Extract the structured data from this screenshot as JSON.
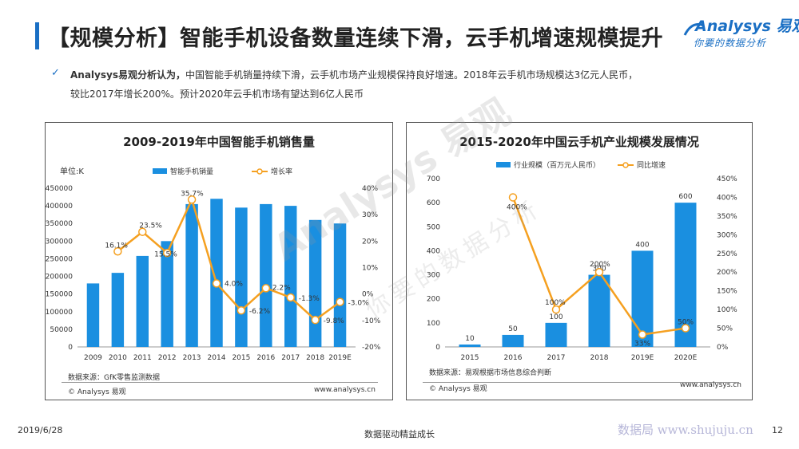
{
  "header": {
    "title": "【规模分析】智能手机设备数量连续下滑，云手机增速规模提升",
    "logo_main": "Analysys 易观",
    "logo_sub": "你要的数据分析"
  },
  "summary": {
    "lead": "Analysys易观分析认为，",
    "text1": "中国智能手机销量持续下滑，云手机市场产业规模保持良好增速。2018年云手机市场规模达3亿元人民币，",
    "text2": "较比2017年增长200%。预计2020年云手机市场有望达到6亿人民币"
  },
  "watermark": {
    "main": "Analysys 易观",
    "sub": "你要的数据分析"
  },
  "chart_data": [
    {
      "type": "bar",
      "title": "2009-2019年中国智能手机销售量",
      "unit_label": "单位:K",
      "categories": [
        "2009",
        "2010",
        "2011",
        "2012",
        "2013",
        "2014",
        "2015",
        "2016",
        "2017",
        "2018",
        "2019E"
      ],
      "series": [
        {
          "name": "智能手机销量",
          "type": "bar",
          "axis": "left",
          "color": "#1a8fe0",
          "values": [
            180000,
            210000,
            258000,
            300000,
            405000,
            420000,
            395000,
            405000,
            400000,
            360000,
            350000
          ]
        },
        {
          "name": "增长率",
          "type": "line",
          "axis": "right",
          "color": "#f5a020",
          "values": [
            null,
            16.1,
            23.5,
            15.5,
            35.7,
            4.0,
            -6.2,
            2.2,
            -1.3,
            -9.8,
            -3.0
          ],
          "labels": [
            "",
            "16.1%",
            "23.5%",
            "15.5%",
            "35.7%",
            "4.0%",
            "-6.2%",
            "2.2%",
            "-1.3%",
            "-9.8%",
            "-3.0%"
          ]
        }
      ],
      "ylim_left": [
        0,
        450000
      ],
      "yticks_left": [
        0,
        50000,
        100000,
        150000,
        200000,
        250000,
        300000,
        350000,
        400000,
        450000
      ],
      "ylim_right": [
        -20,
        40
      ],
      "yticks_right": [
        "-20%",
        "-10%",
        "0%",
        "10%",
        "20%",
        "30%",
        "40%"
      ],
      "legend_placement": "top",
      "source": "数据来源：GfK零售监测数据",
      "copyright": "© Analysys 易观",
      "site": "www.analysys.cn"
    },
    {
      "type": "bar",
      "title": "2015-2020年中国云手机产业规模发展情况",
      "categories": [
        "2015",
        "2016",
        "2017",
        "2018",
        "2019E",
        "2020E"
      ],
      "series": [
        {
          "name": "行业规模（百万元人民币）",
          "type": "bar",
          "axis": "left",
          "color": "#1a8fe0",
          "values": [
            10,
            50,
            100,
            300,
            400,
            600
          ],
          "labels": [
            "10",
            "50",
            "100",
            "300",
            "400",
            "600"
          ]
        },
        {
          "name": "同比增速",
          "type": "line",
          "axis": "right",
          "color": "#f5a020",
          "values": [
            null,
            400,
            100,
            200,
            33,
            50
          ],
          "labels": [
            "",
            "400%",
            "100%",
            "200%",
            "33%",
            "50%"
          ]
        }
      ],
      "ylim_left": [
        0,
        700
      ],
      "yticks_left": [
        0,
        100,
        200,
        300,
        400,
        500,
        600,
        700
      ],
      "ylim_right": [
        0,
        450
      ],
      "yticks_right": [
        "0%",
        "50%",
        "100%",
        "150%",
        "200%",
        "250%",
        "300%",
        "350%",
        "400%",
        "450%"
      ],
      "legend_placement": "top",
      "source": "数据来源：易观根据市场信息综合判断",
      "copyright": "© Analysys 易观",
      "site": "www.analysys.cn"
    }
  ],
  "footer": {
    "date": "2019/6/28",
    "center": "数据驱动精益成长",
    "site": "数据局 www.shujuju.cn",
    "page": "12"
  }
}
